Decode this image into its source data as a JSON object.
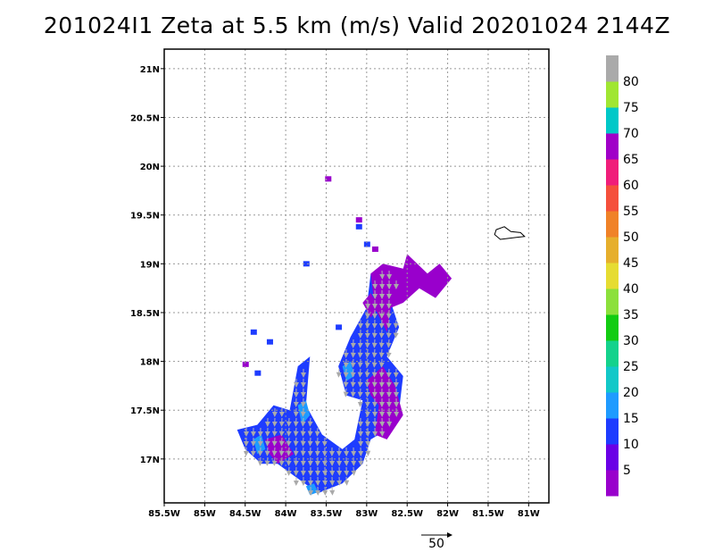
{
  "title": "201024I1  Zeta at 5.5 km (m/s) Valid 20201024  2144Z",
  "map": {
    "lon_range": [
      -85.5,
      -80.75
    ],
    "lat_range": [
      16.55,
      21.2
    ],
    "grid_lines": true,
    "lon_ticks": [
      {
        "value": -85.5,
        "label": "85.5W"
      },
      {
        "value": -85.0,
        "label": "85W"
      },
      {
        "value": -84.5,
        "label": "84.5W"
      },
      {
        "value": -84.0,
        "label": "84W"
      },
      {
        "value": -83.5,
        "label": "83.5W"
      },
      {
        "value": -83.0,
        "label": "83W"
      },
      {
        "value": -82.5,
        "label": "82.5W"
      },
      {
        "value": -82.0,
        "label": "82W"
      },
      {
        "value": -81.5,
        "label": "81.5W"
      },
      {
        "value": -81.0,
        "label": "81W"
      }
    ],
    "lat_ticks": [
      {
        "value": 17.0,
        "label": "17N"
      },
      {
        "value": 17.5,
        "label": "17.5N"
      },
      {
        "value": 18.0,
        "label": "18N"
      },
      {
        "value": 18.5,
        "label": "18.5N"
      },
      {
        "value": 19.0,
        "label": "19N"
      },
      {
        "value": 19.5,
        "label": "19.5N"
      },
      {
        "value": 20.0,
        "label": "20N"
      },
      {
        "value": 20.5,
        "label": "20.5N"
      },
      {
        "value": 21.0,
        "label": "21N"
      }
    ],
    "island_name": "grand-cayman-coastline"
  },
  "chart_data": {
    "type": "heatmap",
    "variable": "wind speed (m/s) with wind vectors",
    "colorbar": {
      "bins": [
        {
          "min": 0,
          "max": 5,
          "color": "#9900cc"
        },
        {
          "min": 5,
          "max": 10,
          "color": "#6a00e6"
        },
        {
          "min": 10,
          "max": 15,
          "color": "#1e3cff"
        },
        {
          "min": 15,
          "max": 20,
          "color": "#1f9bff"
        },
        {
          "min": 20,
          "max": 25,
          "color": "#12c8c8"
        },
        {
          "min": 25,
          "max": 30,
          "color": "#14d28c"
        },
        {
          "min": 30,
          "max": 35,
          "color": "#12cc12"
        },
        {
          "min": 35,
          "max": 40,
          "color": "#8ce03c"
        },
        {
          "min": 40,
          "max": 45,
          "color": "#e6dc32"
        },
        {
          "min": 45,
          "max": 50,
          "color": "#e6af2d"
        },
        {
          "min": 50,
          "max": 55,
          "color": "#f08228"
        },
        {
          "min": 55,
          "max": 60,
          "color": "#f5503c"
        },
        {
          "min": 60,
          "max": 65,
          "color": "#f01e7a"
        },
        {
          "min": 65,
          "max": 70,
          "color": "#a000c8"
        },
        {
          "min": 70,
          "max": 75,
          "color": "#00c8c8"
        },
        {
          "min": 75,
          "max": 80,
          "color": "#a0e632"
        },
        {
          "min": 80,
          "max": 85,
          "color": "#aaaaaa"
        }
      ],
      "labels": [
        "5",
        "10",
        "15",
        "20",
        "25",
        "30",
        "35",
        "40",
        "45",
        "50",
        "55",
        "60",
        "65",
        "70",
        "75",
        "80"
      ]
    },
    "regions": [
      {
        "level": "10-15",
        "polygon": [
          [
            -84.6,
            17.3
          ],
          [
            -84.35,
            17.35
          ],
          [
            -84.15,
            17.55
          ],
          [
            -83.95,
            17.5
          ],
          [
            -83.85,
            17.95
          ],
          [
            -83.7,
            18.05
          ],
          [
            -83.75,
            17.55
          ],
          [
            -83.55,
            17.25
          ],
          [
            -83.3,
            17.1
          ],
          [
            -83.15,
            17.2
          ],
          [
            -83.05,
            17.6
          ],
          [
            -83.25,
            17.65
          ],
          [
            -83.35,
            17.95
          ],
          [
            -83.2,
            18.25
          ],
          [
            -83.0,
            18.55
          ],
          [
            -82.95,
            18.9
          ],
          [
            -82.75,
            18.95
          ],
          [
            -82.6,
            18.85
          ],
          [
            -82.7,
            18.6
          ],
          [
            -82.6,
            18.35
          ],
          [
            -82.75,
            18.05
          ],
          [
            -82.55,
            17.85
          ],
          [
            -82.6,
            17.5
          ],
          [
            -82.75,
            17.3
          ],
          [
            -82.95,
            17.2
          ],
          [
            -83.05,
            16.95
          ],
          [
            -83.3,
            16.75
          ],
          [
            -83.6,
            16.65
          ],
          [
            -83.85,
            16.8
          ],
          [
            -84.1,
            16.95
          ],
          [
            -84.3,
            16.95
          ],
          [
            -84.5,
            17.1
          ]
        ]
      },
      {
        "level": "10-15",
        "polygon": [
          [
            -84.6,
            17.3
          ],
          [
            -84.5,
            17.2
          ],
          [
            -84.35,
            17.35
          ],
          [
            -84.45,
            17.3
          ]
        ]
      },
      {
        "level": "0-5",
        "polygon": [
          [
            -82.95,
            18.9
          ],
          [
            -82.8,
            19.0
          ],
          [
            -82.55,
            18.95
          ],
          [
            -82.5,
            19.1
          ],
          [
            -82.25,
            18.9
          ],
          [
            -82.1,
            19.0
          ],
          [
            -81.95,
            18.85
          ],
          [
            -82.15,
            18.65
          ],
          [
            -82.35,
            18.75
          ],
          [
            -82.55,
            18.6
          ],
          [
            -82.7,
            18.55
          ],
          [
            -82.75,
            18.3
          ],
          [
            -82.9,
            18.55
          ]
        ]
      },
      {
        "level": "0-5",
        "polygon": [
          [
            -83.0,
            17.8
          ],
          [
            -82.8,
            17.95
          ],
          [
            -82.65,
            17.75
          ],
          [
            -82.55,
            17.45
          ],
          [
            -82.75,
            17.2
          ],
          [
            -82.9,
            17.25
          ],
          [
            -82.85,
            17.55
          ],
          [
            -82.95,
            17.65
          ]
        ]
      },
      {
        "level": "0-5",
        "polygon": [
          [
            -84.25,
            17.2
          ],
          [
            -84.05,
            17.25
          ],
          [
            -83.9,
            17.05
          ],
          [
            -84.1,
            16.95
          ],
          [
            -84.2,
            17.05
          ]
        ]
      },
      {
        "level": "0-5",
        "polygon": [
          [
            -83.05,
            18.6
          ],
          [
            -82.95,
            18.7
          ],
          [
            -82.85,
            18.55
          ],
          [
            -82.95,
            18.45
          ]
        ]
      },
      {
        "level": "15-20",
        "polygon": [
          [
            -83.85,
            17.55
          ],
          [
            -83.75,
            17.6
          ],
          [
            -83.7,
            17.45
          ],
          [
            -83.8,
            17.35
          ]
        ]
      },
      {
        "level": "15-20",
        "polygon": [
          [
            -84.4,
            17.2
          ],
          [
            -84.3,
            17.25
          ],
          [
            -84.25,
            17.1
          ],
          [
            -84.35,
            17.05
          ]
        ]
      },
      {
        "level": "15-20",
        "polygon": [
          [
            -83.75,
            16.72
          ],
          [
            -83.65,
            16.75
          ],
          [
            -83.6,
            16.66
          ],
          [
            -83.7,
            16.63
          ]
        ]
      },
      {
        "level": "15-20",
        "polygon": [
          [
            -83.3,
            17.95
          ],
          [
            -83.2,
            18.0
          ],
          [
            -83.15,
            17.85
          ],
          [
            -83.25,
            17.8
          ]
        ]
      }
    ],
    "small_cells": [
      {
        "level": "0-5",
        "lon": -83.48,
        "lat": 19.87
      },
      {
        "level": "0-5",
        "lon": -83.1,
        "lat": 19.45
      },
      {
        "level": "10-15",
        "lon": -83.1,
        "lat": 19.38
      },
      {
        "level": "10-15",
        "lon": -83.0,
        "lat": 19.2
      },
      {
        "level": "0-5",
        "lon": -82.9,
        "lat": 19.15
      },
      {
        "level": "10-15",
        "lon": -83.75,
        "lat": 19.0
      },
      {
        "level": "10-15",
        "lon": -84.4,
        "lat": 18.3
      },
      {
        "level": "0-5",
        "lon": -84.5,
        "lat": 17.97
      },
      {
        "level": "10-15",
        "lon": -84.35,
        "lat": 17.88
      },
      {
        "level": "10-15",
        "lon": -83.35,
        "lat": 18.35
      },
      {
        "level": "10-15",
        "lon": -84.2,
        "lat": 18.2
      }
    ],
    "vector_scale": {
      "label": "50",
      "value": 50,
      "units": "m/s"
    }
  }
}
